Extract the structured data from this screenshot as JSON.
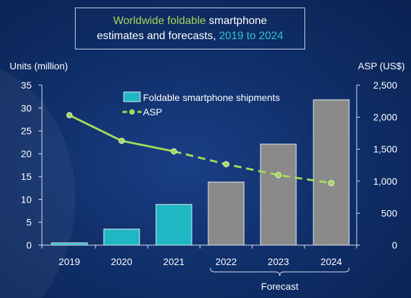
{
  "title": {
    "line1_highlight": "Worldwide foldable",
    "line1_rest": " smartphone",
    "line2_prefix": "estimates and forecasts, ",
    "line2_highlight": "2019 to 2024"
  },
  "colors": {
    "background": "#10306b",
    "bar_actual": "#1fb7c3",
    "bar_forecast": "#8a8a8a",
    "asp_line": "#a3d95a",
    "text": "#ffffff"
  },
  "chart_data": {
    "type": "bar",
    "categories": [
      "2019",
      "2020",
      "2021",
      "2022",
      "2023",
      "2024"
    ],
    "series": [
      {
        "name": "Foldable smartphone shipments",
        "type": "bar",
        "axis": "left",
        "values": [
          0.5,
          3.5,
          8.9,
          13.8,
          22.1,
          31.8
        ],
        "forecast_from_index": 3
      },
      {
        "name": "ASP",
        "type": "line",
        "axis": "right",
        "values": [
          2030,
          1630,
          1465,
          1265,
          1095,
          970
        ],
        "dashed_from_index": 2
      }
    ],
    "ylabel": "Units (million)",
    "y2label": "ASP (US$)",
    "ylim": [
      0,
      35
    ],
    "y2lim": [
      0,
      2500
    ],
    "yticks": [
      "0",
      "5",
      "10",
      "15",
      "20",
      "25",
      "30",
      "35"
    ],
    "y2ticks": [
      "0",
      "500",
      "1,000",
      "1,500",
      "2,000",
      "2,500"
    ],
    "annotation": "Forecast",
    "legend_position": "top-center",
    "grid": false
  }
}
